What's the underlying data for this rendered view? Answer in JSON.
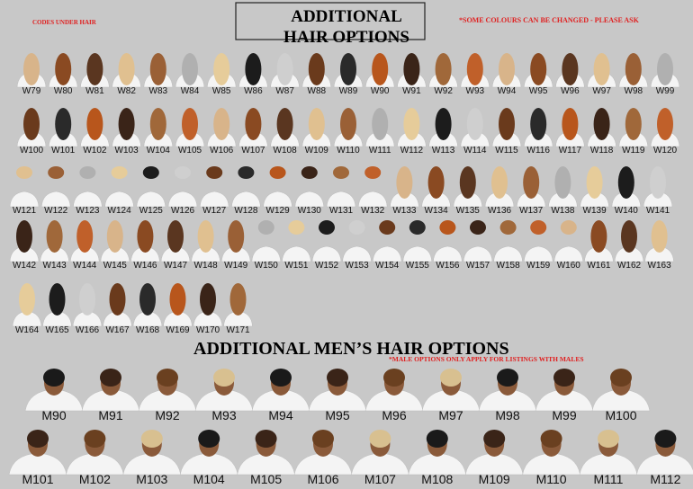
{
  "header": {
    "title_line1": "ADDITIONAL",
    "title_line2": "HAIR OPTIONS",
    "left_note": "CODES UNDER HAIR",
    "right_note": "*SOME COLOURS CAN BE CHANGED - PLEASE ASK"
  },
  "women_rows": [
    [
      "W79",
      "W80",
      "W81",
      "W82",
      "W83",
      "W84",
      "W85",
      "W86",
      "W87",
      "W88",
      "W89",
      "W90",
      "W91",
      "W92",
      "W93",
      "W94",
      "W95",
      "W96",
      "W97",
      "W98",
      "W99"
    ],
    [
      "W100",
      "W101",
      "W102",
      "W103",
      "W104",
      "W105",
      "W106",
      "W107",
      "W108",
      "W109",
      "W110",
      "W111",
      "W112",
      "W113",
      "W114",
      "W115",
      "W116",
      "W117",
      "W118",
      "W119",
      "W120"
    ],
    [
      "W121",
      "W122",
      "W123",
      "W124",
      "W125",
      "W126",
      "W127",
      "W128",
      "W129",
      "W130",
      "W131",
      "W132",
      "W133",
      "W134",
      "W135",
      "W136",
      "W137",
      "W138",
      "W139",
      "W140",
      "W141"
    ],
    [
      "W142",
      "W143",
      "W144",
      "W145",
      "W146",
      "W147",
      "W148",
      "W149",
      "W150",
      "W151",
      "W152",
      "W153",
      "W154",
      "W155",
      "W156",
      "W157",
      "W158",
      "W159",
      "W160",
      "W161",
      "W162",
      "W163"
    ],
    [
      "W164",
      "W165",
      "W166",
      "W167",
      "W168",
      "W169",
      "W170",
      "W171"
    ]
  ],
  "men_section": {
    "title": "ADDITIONAL MEN’S HAIR OPTIONS",
    "note": "*MALE OPTIONS  ONLY APPLY FOR LISTINGS WITH MALES"
  },
  "men_rows": [
    [
      "M90",
      "M91",
      "M92",
      "M93",
      "M94",
      "M95",
      "M96",
      "M97",
      "M98",
      "M99",
      "M100"
    ],
    [
      "M101",
      "M102",
      "M103",
      "M104",
      "M105",
      "M106",
      "M107",
      "M108",
      "M109",
      "M110",
      "M111",
      "M112"
    ]
  ]
}
